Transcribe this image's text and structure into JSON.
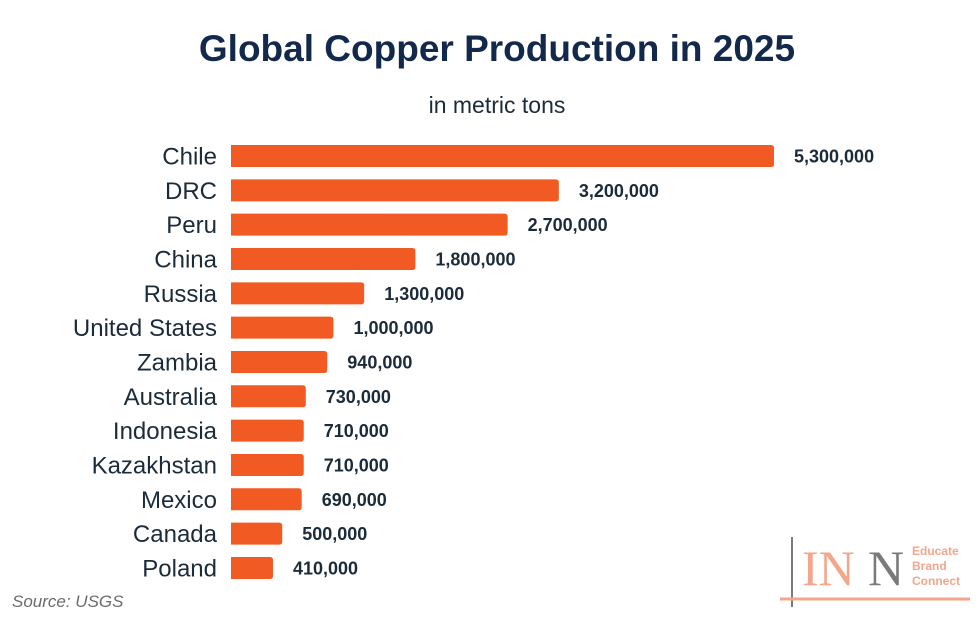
{
  "chart_data": {
    "type": "bar",
    "orientation": "horizontal",
    "title": "Global Copper Production in 2025",
    "subtitle": "in metric tons",
    "categories": [
      "Chile",
      "DRC",
      "Peru",
      "China",
      "Russia",
      "United States",
      "Zambia",
      "Australia",
      "Indonesia",
      "Kazakhstan",
      "Mexico",
      "Canada",
      "Poland"
    ],
    "values": [
      5300000,
      3200000,
      2700000,
      1800000,
      1300000,
      1000000,
      940000,
      730000,
      710000,
      710000,
      690000,
      500000,
      410000
    ],
    "data_labels": [
      "5,300,000",
      "3,200,000",
      "2,700,000",
      "1,800,000",
      "1,300,000",
      "1,000,000",
      "940,000",
      "730,000",
      "710,000",
      "710,000",
      "690,000",
      "500,000",
      "410,000"
    ],
    "xlim": [
      0,
      5300000
    ],
    "grid": false,
    "bar_color": "#f15a22",
    "text_color": "#1c2b3a"
  },
  "source": "Source: USGS",
  "logo": {
    "letters": "INN",
    "tagline": [
      "Educate",
      "Brand",
      "Connect"
    ],
    "accent": "#f5a58a",
    "gray": "#7a7a7a"
  }
}
